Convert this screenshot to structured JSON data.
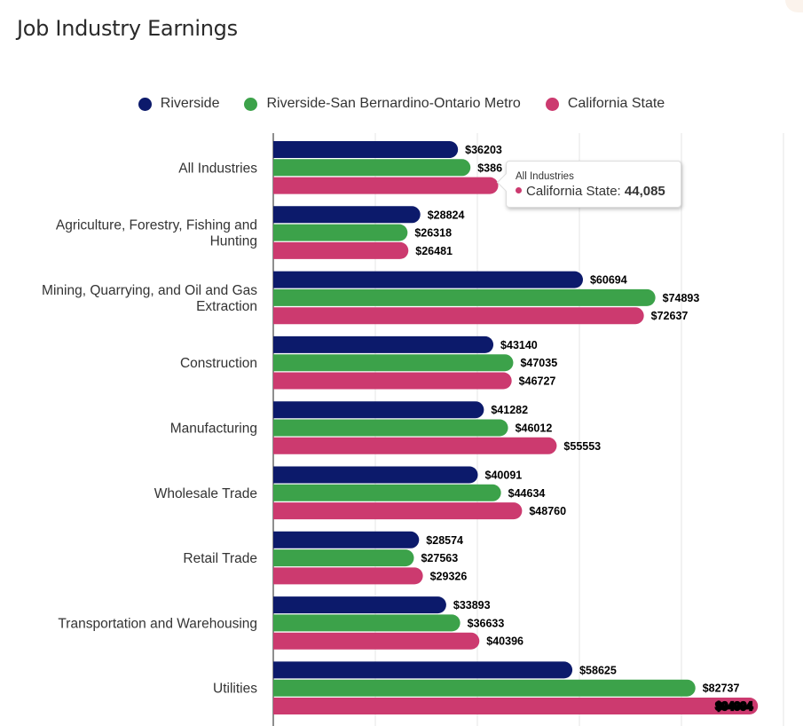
{
  "card": {
    "title": "Job Industry Earnings"
  },
  "chart_data": {
    "type": "bar",
    "orientation": "horizontal",
    "title": "Job Industry Earnings",
    "xlabel": "",
    "ylabel": "",
    "xlim": [
      0,
      100000
    ],
    "grid": true,
    "legend_position": "top-center",
    "value_prefix": "$",
    "categories": [
      "All Industries",
      "Agriculture, Forestry, Fishing and Hunting",
      "Mining, Quarrying, and Oil and Gas Extraction",
      "Construction",
      "Manufacturing",
      "Wholesale Trade",
      "Retail Trade",
      "Transportation and Warehousing",
      "Utilities"
    ],
    "category_lines": [
      [
        "All Industries"
      ],
      [
        "Agriculture, Forestry, Fishing and",
        "Hunting"
      ],
      [
        "Mining, Quarrying, and Oil and Gas",
        "Extraction"
      ],
      [
        "Construction"
      ],
      [
        "Manufacturing"
      ],
      [
        "Wholesale Trade"
      ],
      [
        "Retail Trade"
      ],
      [
        "Transportation and Warehousing"
      ],
      [
        "Utilities"
      ]
    ],
    "series": [
      {
        "name": "Riverside",
        "color": "#0c1a6b",
        "values": [
          36203,
          28824,
          60694,
          43140,
          41282,
          40091,
          28574,
          33893,
          58625
        ]
      },
      {
        "name": "Riverside-San Bernardino-Ontario Metro",
        "color": "#3ca24a",
        "values": [
          38650,
          26318,
          74893,
          47035,
          46012,
          44634,
          27563,
          36633,
          82737
        ]
      },
      {
        "name": "California State",
        "color": "#cc3a6f",
        "values": [
          44085,
          26481,
          72637,
          46727,
          55553,
          48760,
          29326,
          40396,
          94994
        ]
      }
    ]
  },
  "tooltip": {
    "category": "All Industries",
    "series": "California State",
    "label": "California State: ",
    "value": "44,085",
    "color": "#cc3a6f"
  }
}
